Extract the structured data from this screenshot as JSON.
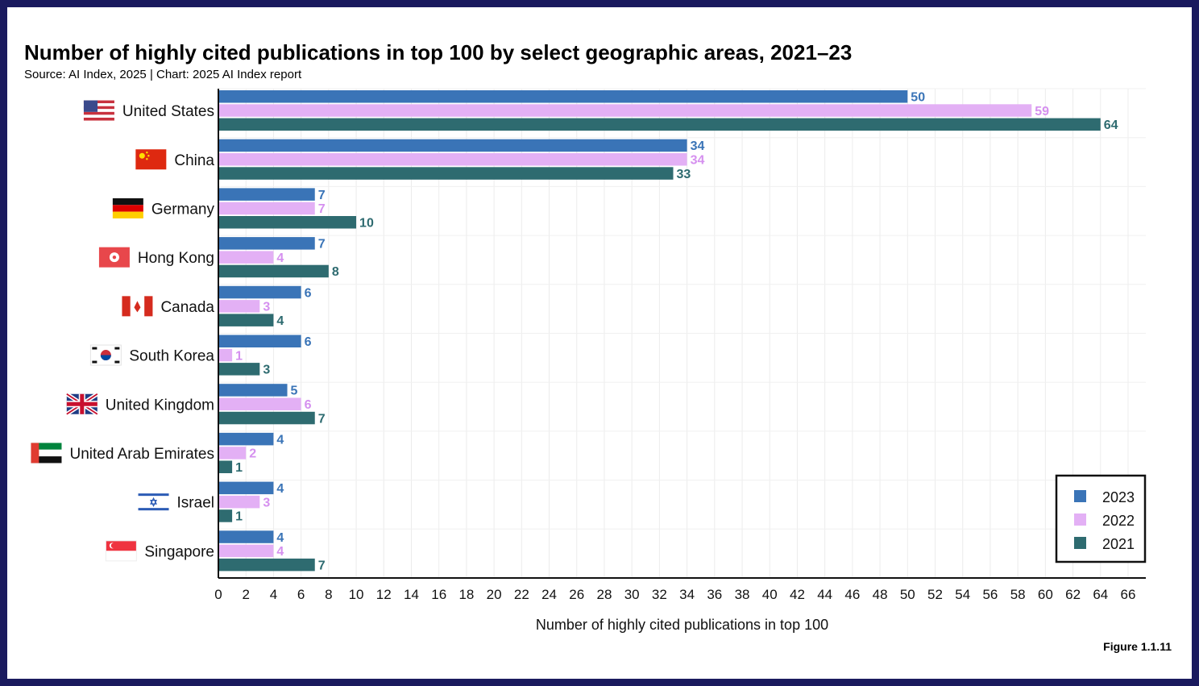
{
  "header": {
    "title": "Number of highly cited publications in top 100 by select geographic areas, 2021–23",
    "subtitle": "Source: AI Index, 2025 | Chart: 2025 AI Index report"
  },
  "footer": {
    "figure_label": "Figure 1.1.11"
  },
  "colors": {
    "2023": "#3a74b7",
    "2022": "#e3b0f5",
    "2021": "#2e6b70",
    "2022_label": "#d590ef"
  },
  "chart_data": {
    "type": "bar",
    "orientation": "horizontal",
    "title": "Number of highly cited publications in top 100 by select geographic areas, 2021–23",
    "xlabel": "Number of highly cited publications in top 100",
    "ylabel": "",
    "xlim": [
      0,
      66
    ],
    "xticks": [
      0,
      2,
      4,
      6,
      8,
      10,
      12,
      14,
      16,
      18,
      20,
      22,
      24,
      26,
      28,
      30,
      32,
      34,
      36,
      38,
      40,
      42,
      44,
      46,
      48,
      50,
      52,
      54,
      56,
      58,
      60,
      62,
      64,
      66
    ],
    "grid": true,
    "legend_position": "bottom-right",
    "categories": [
      "United States",
      "China",
      "Germany",
      "Hong Kong",
      "Canada",
      "South Korea",
      "United Kingdom",
      "United Arab Emirates",
      "Israel",
      "Singapore"
    ],
    "flags": [
      "us-flag-icon",
      "china-flag-icon",
      "germany-flag-icon",
      "hong-kong-flag-icon",
      "canada-flag-icon",
      "south-korea-flag-icon",
      "uk-flag-icon",
      "uae-flag-icon",
      "israel-flag-icon",
      "singapore-flag-icon"
    ],
    "series": [
      {
        "name": "2023",
        "values": [
          50,
          34,
          7,
          7,
          6,
          6,
          5,
          4,
          4,
          4
        ]
      },
      {
        "name": "2022",
        "values": [
          59,
          34,
          7,
          4,
          3,
          1,
          6,
          2,
          3,
          4
        ]
      },
      {
        "name": "2021",
        "values": [
          64,
          33,
          10,
          8,
          4,
          3,
          7,
          1,
          1,
          7
        ]
      }
    ]
  }
}
